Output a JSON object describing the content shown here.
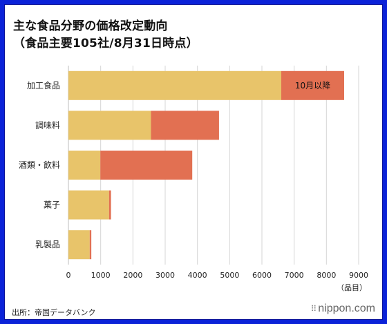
{
  "title_line1": "主な食品分野の価格改定動向",
  "title_line2": "（食品主要105社/8月31日時点）",
  "source": "出所：帝国データバンク",
  "brand": "nippon.com",
  "chart_data": {
    "type": "bar",
    "orientation": "horizontal",
    "stacked": true,
    "categories": [
      "加工食品",
      "調味料",
      "酒類・飲料",
      "菓子",
      "乳製品"
    ],
    "series": [
      {
        "values": [
          6600,
          2560,
          990,
          1260,
          660
        ],
        "color": "#e8c46a"
      },
      {
        "name": "10月以降",
        "values": [
          1950,
          2110,
          2850,
          60,
          50
        ],
        "color": "#e27052"
      }
    ],
    "x_ticks": [
      0,
      1000,
      2000,
      3000,
      4000,
      5000,
      6000,
      7000,
      8000,
      9000
    ],
    "xlim": [
      0,
      9000
    ],
    "x_unit": "（品目）",
    "annotation": {
      "text": "10月以降",
      "category_index": 0,
      "series_index": 1
    },
    "grid": "vertical",
    "background": "#ffffff",
    "frame_color": "#0b22d8"
  }
}
